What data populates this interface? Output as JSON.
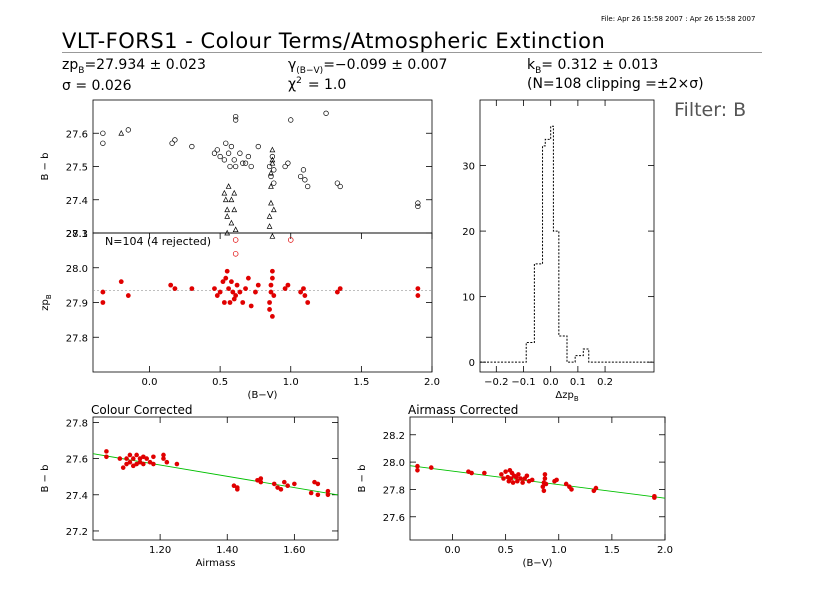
{
  "header": {
    "file_stamp": "File: Apr 26 15:58 2007 : Apr 26 15:58 2007",
    "title": "VLT-FORS1 - Colour Terms/Atmospheric Extinction",
    "zp_line": "zp",
    "zp_sub": "B",
    "zp_value": "=27.934 ± 0.023",
    "sigma_line": "σ = 0.026",
    "gamma_sym": "γ",
    "gamma_sub": "(B−V)",
    "gamma_value": "=−0.099 ± 0.007",
    "chi_sym": "χ",
    "chi_sup": "2",
    "chi_value": "= 1.0",
    "k_sym": "k",
    "k_sub": "B",
    "k_value": "= 0.312 ± 0.013",
    "clip_line": "(N=108 clipping =±2×σ)",
    "filter_label": "Filter: B"
  },
  "colors": {
    "accepted": "#e00000",
    "fit_line": "#00c000",
    "reference": "#999999",
    "axes": "#000000"
  },
  "chart_data": [
    {
      "id": "raw_vs_color",
      "type": "scatter",
      "xlabel": "",
      "ylabel": "B − b",
      "xlim": [
        -0.4,
        2.0
      ],
      "ylim": [
        27.3,
        27.7
      ],
      "yticks": [
        27.3,
        27.4,
        27.5,
        27.6
      ],
      "marker": "open-circle",
      "points": [
        [
          -0.33,
          27.6
        ],
        [
          -0.33,
          27.57
        ],
        [
          -0.15,
          27.61
        ],
        [
          0.16,
          27.57
        ],
        [
          0.18,
          27.58
        ],
        [
          0.3,
          27.56
        ],
        [
          0.46,
          27.54
        ],
        [
          0.48,
          27.55
        ],
        [
          0.5,
          27.53
        ],
        [
          0.53,
          27.52
        ],
        [
          0.54,
          27.57
        ],
        [
          0.56,
          27.54
        ],
        [
          0.57,
          27.5
        ],
        [
          0.58,
          27.56
        ],
        [
          0.6,
          27.52
        ],
        [
          0.61,
          27.5
        ],
        [
          0.61,
          27.64
        ],
        [
          0.61,
          27.65
        ],
        [
          0.64,
          27.54
        ],
        [
          0.66,
          27.51
        ],
        [
          0.68,
          27.51
        ],
        [
          0.7,
          27.53
        ],
        [
          0.72,
          27.5
        ],
        [
          0.77,
          27.56
        ],
        [
          0.85,
          27.5
        ],
        [
          0.86,
          27.47
        ],
        [
          0.87,
          27.53
        ],
        [
          0.88,
          27.49
        ],
        [
          0.88,
          27.45
        ],
        [
          0.96,
          27.5
        ],
        [
          0.98,
          27.51
        ],
        [
          1.0,
          27.64
        ],
        [
          1.07,
          27.47
        ],
        [
          1.09,
          27.49
        ],
        [
          1.1,
          27.46
        ],
        [
          1.12,
          27.44
        ],
        [
          1.25,
          27.66
        ],
        [
          1.33,
          27.45
        ],
        [
          1.35,
          27.44
        ],
        [
          1.9,
          27.38
        ],
        [
          1.9,
          27.39
        ]
      ],
      "rejected_points": [
        [
          -0.2,
          27.6
        ],
        [
          0.53,
          27.42
        ],
        [
          0.54,
          27.4
        ],
        [
          0.55,
          27.37
        ],
        [
          0.55,
          27.35
        ],
        [
          0.55,
          27.3
        ],
        [
          0.56,
          27.44
        ],
        [
          0.58,
          27.33
        ],
        [
          0.58,
          27.4
        ],
        [
          0.6,
          27.37
        ],
        [
          0.6,
          27.42
        ],
        [
          0.61,
          27.31
        ],
        [
          0.85,
          27.35
        ],
        [
          0.85,
          27.32
        ],
        [
          0.86,
          27.39
        ],
        [
          0.86,
          27.44
        ],
        [
          0.86,
          27.48
        ],
        [
          0.87,
          27.51
        ],
        [
          0.87,
          27.52
        ],
        [
          0.87,
          27.55
        ],
        [
          0.87,
          27.29
        ],
        [
          0.88,
          27.37
        ]
      ]
    },
    {
      "id": "zp_vs_color",
      "type": "scatter",
      "annotation": "N=104 (4 rejected)",
      "xlabel": "(B−V)",
      "ylabel": "zp",
      "ylabel_sub": "B",
      "xlim": [
        -0.4,
        2.0
      ],
      "ylim": [
        27.7,
        28.1
      ],
      "xticks": [
        0.0,
        0.5,
        1.0,
        1.5,
        2.0
      ],
      "xtick_labels": [
        "0.0",
        "0.5",
        "1.0",
        "1.5",
        "2.0"
      ],
      "yticks": [
        27.8,
        27.9,
        28.0,
        28.1
      ],
      "reference_y": 27.934,
      "points": [
        [
          -0.33,
          27.93
        ],
        [
          -0.33,
          27.9
        ],
        [
          -0.2,
          27.96
        ],
        [
          -0.15,
          27.92
        ],
        [
          0.15,
          27.95
        ],
        [
          0.18,
          27.94
        ],
        [
          0.3,
          27.94
        ],
        [
          0.46,
          27.94
        ],
        [
          0.48,
          27.92
        ],
        [
          0.5,
          27.93
        ],
        [
          0.52,
          27.96
        ],
        [
          0.53,
          27.9
        ],
        [
          0.54,
          27.97
        ],
        [
          0.55,
          27.99
        ],
        [
          0.56,
          27.94
        ],
        [
          0.57,
          27.9
        ],
        [
          0.58,
          27.96
        ],
        [
          0.59,
          27.93
        ],
        [
          0.6,
          27.91
        ],
        [
          0.61,
          27.92
        ],
        [
          0.62,
          27.95
        ],
        [
          0.64,
          27.93
        ],
        [
          0.66,
          27.9
        ],
        [
          0.68,
          27.94
        ],
        [
          0.7,
          27.97
        ],
        [
          0.72,
          27.89
        ],
        [
          0.75,
          27.93
        ],
        [
          0.77,
          27.95
        ],
        [
          0.85,
          27.9
        ],
        [
          0.85,
          27.88
        ],
        [
          0.86,
          27.93
        ],
        [
          0.86,
          27.95
        ],
        [
          0.87,
          27.97
        ],
        [
          0.87,
          27.86
        ],
        [
          0.87,
          27.99
        ],
        [
          0.88,
          27.92
        ],
        [
          0.96,
          27.94
        ],
        [
          0.98,
          27.95
        ],
        [
          1.07,
          27.93
        ],
        [
          1.09,
          27.94
        ],
        [
          1.1,
          27.92
        ],
        [
          1.12,
          27.9
        ],
        [
          1.33,
          27.93
        ],
        [
          1.35,
          27.94
        ],
        [
          1.9,
          27.92
        ],
        [
          1.9,
          27.94
        ]
      ],
      "rejected_points": [
        [
          0.61,
          28.04
        ],
        [
          0.61,
          28.08
        ],
        [
          1.0,
          28.08
        ]
      ]
    },
    {
      "id": "histogram",
      "type": "bar",
      "xlabel": "Δzp",
      "xlabel_sub": "B",
      "xlim": [
        -0.26,
        0.38
      ],
      "ylim": [
        -1.5,
        40
      ],
      "xticks": [
        -0.2,
        -0.1,
        0.0,
        0.1,
        0.2
      ],
      "xtick_labels": [
        "−0.2",
        "−0.1",
        "0.0",
        "0.1",
        "0.2"
      ],
      "yticks": [
        0,
        10,
        20,
        30
      ],
      "bin_edges": [
        -0.26,
        -0.09,
        -0.06,
        -0.03,
        -0.02,
        0.0,
        0.01,
        0.03,
        0.06,
        0.09,
        0.12,
        0.14,
        0.17,
        0.38
      ],
      "counts": [
        0,
        3,
        15,
        33,
        34,
        36,
        20,
        4,
        0,
        1,
        2,
        0,
        0
      ]
    },
    {
      "id": "colour_corrected",
      "type": "scatter",
      "title": "Colour Corrected",
      "xlabel": "Airmass",
      "ylabel": "B − b",
      "xlim": [
        1.0,
        1.73
      ],
      "ylim": [
        27.15,
        27.83
      ],
      "xticks": [
        1.2,
        1.4,
        1.6
      ],
      "xtick_labels": [
        "1.20",
        "1.40",
        "1.60"
      ],
      "yticks": [
        27.2,
        27.4,
        27.6,
        27.8
      ],
      "fit_line": [
        [
          1.0,
          27.627
        ],
        [
          1.73,
          27.399
        ]
      ],
      "points": [
        [
          1.04,
          27.61
        ],
        [
          1.04,
          27.64
        ],
        [
          1.08,
          27.6
        ],
        [
          1.09,
          27.55
        ],
        [
          1.1,
          27.57
        ],
        [
          1.1,
          27.6
        ],
        [
          1.11,
          27.58
        ],
        [
          1.11,
          27.62
        ],
        [
          1.12,
          27.56
        ],
        [
          1.12,
          27.6
        ],
        [
          1.13,
          27.57
        ],
        [
          1.13,
          27.62
        ],
        [
          1.14,
          27.58
        ],
        [
          1.14,
          27.6
        ],
        [
          1.15,
          27.57
        ],
        [
          1.15,
          27.61
        ],
        [
          1.16,
          27.6
        ],
        [
          1.17,
          27.58
        ],
        [
          1.18,
          27.61
        ],
        [
          1.18,
          27.57
        ],
        [
          1.21,
          27.62
        ],
        [
          1.21,
          27.6
        ],
        [
          1.22,
          27.58
        ],
        [
          1.25,
          27.57
        ],
        [
          1.42,
          27.45
        ],
        [
          1.43,
          27.44
        ],
        [
          1.43,
          27.43
        ],
        [
          1.49,
          27.48
        ],
        [
          1.5,
          27.49
        ],
        [
          1.5,
          27.47
        ],
        [
          1.54,
          27.46
        ],
        [
          1.55,
          27.44
        ],
        [
          1.56,
          27.43
        ],
        [
          1.57,
          27.47
        ],
        [
          1.58,
          27.45
        ],
        [
          1.6,
          27.46
        ],
        [
          1.65,
          27.41
        ],
        [
          1.66,
          27.47
        ],
        [
          1.67,
          27.46
        ],
        [
          1.67,
          27.4
        ],
        [
          1.7,
          27.4
        ],
        [
          1.7,
          27.42
        ]
      ]
    },
    {
      "id": "airmass_corrected",
      "type": "scatter",
      "title": "Airmass Corrected",
      "xlabel": "(B−V)",
      "ylabel": "B − b",
      "xlim": [
        -0.4,
        2.0
      ],
      "ylim": [
        27.43,
        28.33
      ],
      "xticks": [
        0.0,
        0.5,
        1.0,
        1.5,
        2.0
      ],
      "xtick_labels": [
        "0.0",
        "0.5",
        "1.0",
        "1.5",
        "2.0"
      ],
      "yticks": [
        27.6,
        27.8,
        28.0,
        28.2
      ],
      "fit_line": [
        [
          -0.4,
          27.974
        ],
        [
          2.0,
          27.736
        ]
      ],
      "points": [
        [
          -0.33,
          27.97
        ],
        [
          -0.33,
          27.94
        ],
        [
          -0.2,
          27.96
        ],
        [
          0.15,
          27.93
        ],
        [
          0.18,
          27.92
        ],
        [
          0.3,
          27.92
        ],
        [
          0.46,
          27.91
        ],
        [
          0.48,
          27.88
        ],
        [
          0.5,
          27.93
        ],
        [
          0.52,
          27.89
        ],
        [
          0.53,
          27.86
        ],
        [
          0.54,
          27.94
        ],
        [
          0.55,
          27.88
        ],
        [
          0.56,
          27.92
        ],
        [
          0.57,
          27.85
        ],
        [
          0.58,
          27.9
        ],
        [
          0.6,
          27.89
        ],
        [
          0.61,
          27.86
        ],
        [
          0.62,
          27.91
        ],
        [
          0.64,
          27.88
        ],
        [
          0.66,
          27.85
        ],
        [
          0.68,
          27.88
        ],
        [
          0.7,
          27.9
        ],
        [
          0.72,
          27.86
        ],
        [
          0.75,
          27.87
        ],
        [
          0.85,
          27.82
        ],
        [
          0.86,
          27.79
        ],
        [
          0.86,
          27.85
        ],
        [
          0.87,
          27.88
        ],
        [
          0.87,
          27.91
        ],
        [
          0.88,
          27.84
        ],
        [
          0.96,
          27.86
        ],
        [
          0.98,
          27.87
        ],
        [
          1.07,
          27.84
        ],
        [
          1.1,
          27.82
        ],
        [
          1.12,
          27.8
        ],
        [
          1.33,
          27.79
        ],
        [
          1.35,
          27.81
        ],
        [
          1.9,
          27.74
        ],
        [
          1.9,
          27.75
        ]
      ]
    }
  ]
}
